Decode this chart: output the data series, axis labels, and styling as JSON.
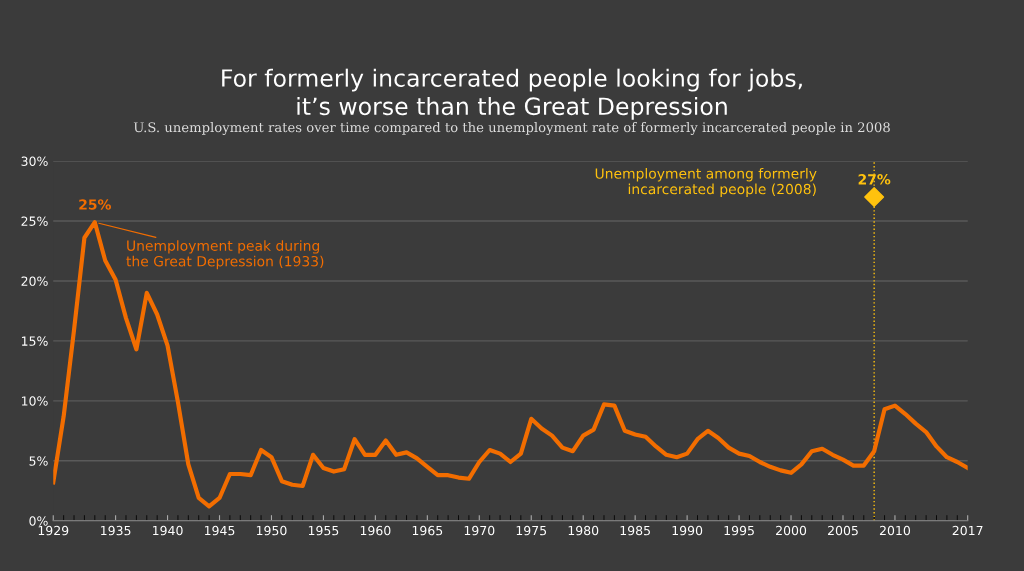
{
  "chart_data": {
    "type": "line",
    "title": "For formerly incarcerated people looking for jobs,\nit’s worse than the Great Depression",
    "subtitle": "U.S. unemployment rates over time compared to the unemployment rate of formerly incarcerated people in 2008",
    "x": [
      1929,
      1930,
      1931,
      1932,
      1933,
      1934,
      1935,
      1936,
      1937,
      1938,
      1939,
      1940,
      1941,
      1942,
      1943,
      1944,
      1945,
      1946,
      1947,
      1948,
      1949,
      1950,
      1951,
      1952,
      1953,
      1954,
      1955,
      1956,
      1957,
      1958,
      1959,
      1960,
      1961,
      1962,
      1963,
      1964,
      1965,
      1966,
      1967,
      1968,
      1969,
      1970,
      1971,
      1972,
      1973,
      1974,
      1975,
      1976,
      1977,
      1978,
      1979,
      1980,
      1981,
      1982,
      1983,
      1984,
      1985,
      1986,
      1987,
      1988,
      1989,
      1990,
      1991,
      1992,
      1993,
      1994,
      1995,
      1996,
      1997,
      1998,
      1999,
      2000,
      2001,
      2002,
      2003,
      2004,
      2005,
      2006,
      2007,
      2008,
      2009,
      2010,
      2011,
      2012,
      2013,
      2014,
      2015,
      2016,
      2017
    ],
    "series": [
      {
        "color": "#f26d00",
        "marker": "none",
        "line_style": "solid",
        "values": [
          3.2,
          8.7,
          15.9,
          23.6,
          24.9,
          21.7,
          20.1,
          16.9,
          14.3,
          19.0,
          17.2,
          14.6,
          9.9,
          4.7,
          1.9,
          1.2,
          1.9,
          3.9,
          3.9,
          3.8,
          5.9,
          5.3,
          3.3,
          3.0,
          2.9,
          5.5,
          4.4,
          4.1,
          4.3,
          6.8,
          5.5,
          5.5,
          6.7,
          5.5,
          5.7,
          5.2,
          4.5,
          3.8,
          3.8,
          3.6,
          3.5,
          4.9,
          5.9,
          5.6,
          4.9,
          5.6,
          8.5,
          7.7,
          7.1,
          6.1,
          5.8,
          7.1,
          7.6,
          9.7,
          9.6,
          7.5,
          7.2,
          7.0,
          6.2,
          5.5,
          5.3,
          5.6,
          6.8,
          7.5,
          6.9,
          6.1,
          5.6,
          5.4,
          4.9,
          4.5,
          4.2,
          4.0,
          4.7,
          5.8,
          6.0,
          5.5,
          5.1,
          4.6,
          4.6,
          5.8,
          9.3,
          9.6,
          8.9,
          8.1,
          7.4,
          6.2,
          5.3,
          4.9,
          4.4
        ],
        "value_labels": [
          null,
          null,
          null,
          null,
          "25%",
          null,
          null,
          null,
          null,
          null,
          null,
          null,
          null,
          null,
          null,
          null,
          null,
          null,
          null,
          null,
          null,
          null,
          null,
          null,
          null,
          null,
          null,
          null,
          null,
          null,
          null,
          null,
          null,
          null,
          null,
          null,
          null,
          null,
          null,
          null,
          null,
          null,
          null,
          null,
          null,
          null,
          null,
          null,
          null,
          null,
          null,
          null,
          null,
          null,
          null,
          null,
          null,
          null,
          null,
          null,
          null,
          null,
          null,
          null,
          null,
          null,
          null,
          null,
          null,
          null,
          null,
          null,
          null,
          null,
          null,
          null,
          null,
          null,
          null,
          null,
          null,
          null,
          null,
          null,
          null,
          null,
          null,
          null,
          null
        ]
      },
      {
        "type": "scatter",
        "name": "Unemployment among formerly\nincarcerated people (2008)",
        "color": "#ffc20e",
        "marker": "diamond",
        "x": [
          2008
        ],
        "values": [
          27
        ],
        "value_labels": [
          "27%"
        ]
      }
    ],
    "ref_lines": [
      {
        "axis": "x",
        "value": 2008,
        "color": "#ffc20e",
        "line_style": "dotted"
      }
    ],
    "annotations": [
      {
        "text": "Unemployment peak during\nthe Great Depression (1933)",
        "x": 1933,
        "y": 24.9
      }
    ],
    "xlim": [
      1929,
      2017
    ],
    "xticks": [
      1929,
      1935,
      1940,
      1945,
      1950,
      1955,
      1960,
      1965,
      1970,
      1975,
      1980,
      1985,
      1990,
      1995,
      2000,
      2005,
      2010,
      2017
    ],
    "ylim": [
      0,
      30
    ],
    "yticks": [
      {
        "value": 0,
        "label": "0%"
      },
      {
        "value": 5,
        "label": "5%"
      },
      {
        "value": 10,
        "label": "10%"
      },
      {
        "value": 15,
        "label": "15%"
      },
      {
        "value": 20,
        "label": "20%"
      },
      {
        "value": 25,
        "label": "25%"
      },
      {
        "value": 30,
        "label": "30%"
      }
    ],
    "grid": "y",
    "legend": false
  }
}
